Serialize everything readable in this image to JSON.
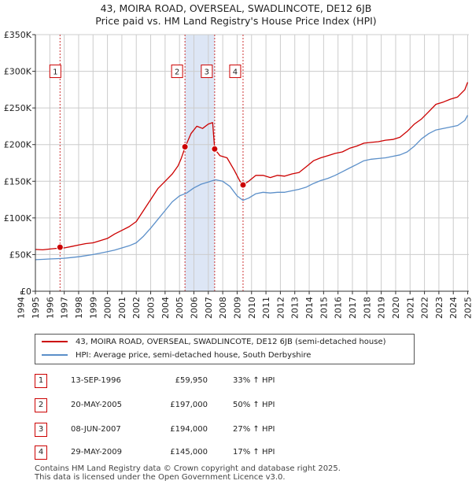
{
  "chart_data": {
    "type": "line",
    "title_line1": "43, MOIRA ROAD, OVERSEAL, SWADLINCOTE, DE12 6JB",
    "title_line2": "Price paid vs. HM Land Registry's House Price Index (HPI)",
    "xlim": [
      1995.0,
      2025.08
    ],
    "ylim": [
      0,
      350000
    ],
    "x_ticks": [
      1994,
      1995,
      1996,
      1997,
      1998,
      1999,
      2000,
      2001,
      2002,
      2003,
      2004,
      2005,
      2006,
      2007,
      2008,
      2009,
      2010,
      2011,
      2012,
      2013,
      2014,
      2015,
      2016,
      2017,
      2018,
      2019,
      2020,
      2021,
      2022,
      2023,
      2024,
      2025
    ],
    "y_ticks": [
      {
        "value": 0,
        "label": "£0"
      },
      {
        "value": 50000,
        "label": "£50K"
      },
      {
        "value": 100000,
        "label": "£100K"
      },
      {
        "value": 150000,
        "label": "£150K"
      },
      {
        "value": 200000,
        "label": "£200K"
      },
      {
        "value": 250000,
        "label": "£250K"
      },
      {
        "value": 300000,
        "label": "£300K"
      },
      {
        "value": 350000,
        "label": "£350K"
      }
    ],
    "colors": {
      "property": "#cc0000",
      "hpi": "#5b8fc9",
      "shade": "#dde6f5",
      "grid": "#cccccc",
      "vline": "#cc3333"
    },
    "series": [
      {
        "name": "43, MOIRA ROAD, OVERSEAL, SWADLINCOTE, DE12 6JB (semi-detached house)",
        "x": [
          1995.0,
          1995.5,
          1996.0,
          1996.5,
          1996.7,
          1997.0,
          1997.5,
          1998.0,
          1998.5,
          1999.0,
          1999.5,
          2000.0,
          2000.5,
          2001.0,
          2001.5,
          2002.0,
          2002.5,
          2003.0,
          2003.5,
          2004.0,
          2004.5,
          2004.9,
          2005.1,
          2005.4,
          2005.8,
          2006.2,
          2006.6,
          2007.0,
          2007.3,
          2007.44,
          2007.8,
          2008.3,
          2008.8,
          2009.2,
          2009.41,
          2009.8,
          2010.3,
          2010.8,
          2011.3,
          2011.8,
          2012.3,
          2012.8,
          2013.3,
          2013.8,
          2014.3,
          2014.8,
          2015.3,
          2015.8,
          2016.3,
          2016.8,
          2017.3,
          2017.8,
          2018.3,
          2018.8,
          2019.3,
          2019.8,
          2020.3,
          2020.8,
          2021.3,
          2021.8,
          2022.3,
          2022.8,
          2023.3,
          2023.8,
          2024.3,
          2024.8,
          2025.0
        ],
        "values": [
          57000,
          56500,
          57500,
          58500,
          59950,
          59000,
          61000,
          63000,
          65000,
          66000,
          69000,
          72000,
          78000,
          83000,
          88000,
          95000,
          110000,
          125000,
          140000,
          150000,
          160000,
          171000,
          180000,
          197000,
          215000,
          225000,
          222000,
          228000,
          230000,
          194000,
          185000,
          182000,
          165000,
          150000,
          145000,
          150000,
          158000,
          158000,
          155000,
          158000,
          157000,
          160000,
          162000,
          170000,
          178000,
          182000,
          185000,
          188000,
          190000,
          195000,
          198000,
          202000,
          203000,
          204000,
          206000,
          207000,
          210000,
          218000,
          228000,
          235000,
          245000,
          255000,
          258000,
          262000,
          265000,
          275000,
          285000
        ]
      },
      {
        "name": "HPI: Average price, semi-detached house, South Derbyshire",
        "x": [
          1995.0,
          1995.5,
          1996.0,
          1996.5,
          1997.0,
          1997.5,
          1998.0,
          1998.5,
          1999.0,
          1999.5,
          2000.0,
          2000.5,
          2001.0,
          2001.5,
          2002.0,
          2002.5,
          2003.0,
          2003.5,
          2004.0,
          2004.5,
          2005.0,
          2005.5,
          2006.0,
          2006.5,
          2007.0,
          2007.5,
          2008.0,
          2008.5,
          2009.0,
          2009.4,
          2009.8,
          2010.3,
          2010.8,
          2011.3,
          2011.8,
          2012.3,
          2012.8,
          2013.3,
          2013.8,
          2014.3,
          2014.8,
          2015.3,
          2015.8,
          2016.3,
          2016.8,
          2017.3,
          2017.8,
          2018.3,
          2018.8,
          2019.3,
          2019.8,
          2020.3,
          2020.8,
          2021.3,
          2021.8,
          2022.3,
          2022.8,
          2023.3,
          2023.8,
          2024.3,
          2024.8,
          2025.0
        ],
        "values": [
          43000,
          43500,
          44000,
          44500,
          45000,
          46000,
          47000,
          48500,
          50000,
          52000,
          54000,
          56000,
          59000,
          62000,
          66000,
          75000,
          86000,
          98000,
          110000,
          122000,
          130000,
          134000,
          141000,
          146000,
          149000,
          152000,
          150000,
          143000,
          130000,
          124000,
          127000,
          133000,
          135000,
          134000,
          135000,
          135000,
          137000,
          139000,
          142000,
          147000,
          151000,
          154000,
          158000,
          163000,
          168000,
          173000,
          178000,
          180000,
          181000,
          182000,
          184000,
          186000,
          190000,
          198000,
          208000,
          215000,
          220000,
          222000,
          224000,
          226000,
          233000,
          240000
        ]
      }
    ],
    "sales": [
      {
        "marker": "1",
        "x": 1996.71,
        "value": 59950
      },
      {
        "marker": "2",
        "x": 2005.38,
        "value": 197000
      },
      {
        "marker": "3",
        "x": 2007.44,
        "value": 194000
      },
      {
        "marker": "4",
        "x": 2009.41,
        "value": 145000
      }
    ],
    "shaded_spans": [
      [
        2005.38,
        2007.44
      ],
      [
        2009.41,
        2009.41
      ]
    ],
    "marker_label_y": 300000
  },
  "legend": {
    "property_label": "43, MOIRA ROAD, OVERSEAL, SWADLINCOTE, DE12 6JB (semi-detached house)",
    "hpi_label": "HPI: Average price, semi-detached house, South Derbyshire"
  },
  "transactions": [
    {
      "num": "1",
      "date": "13-SEP-1996",
      "price": "£59,950",
      "hpi": "33% ↑ HPI"
    },
    {
      "num": "2",
      "date": "20-MAY-2005",
      "price": "£197,000",
      "hpi": "50% ↑ HPI"
    },
    {
      "num": "3",
      "date": "08-JUN-2007",
      "price": "£194,000",
      "hpi": "27% ↑ HPI"
    },
    {
      "num": "4",
      "date": "29-MAY-2009",
      "price": "£145,000",
      "hpi": "17% ↑ HPI"
    }
  ],
  "footer": {
    "line1": "Contains HM Land Registry data © Crown copyright and database right 2025.",
    "line2": "This data is licensed under the Open Government Licence v3.0."
  }
}
